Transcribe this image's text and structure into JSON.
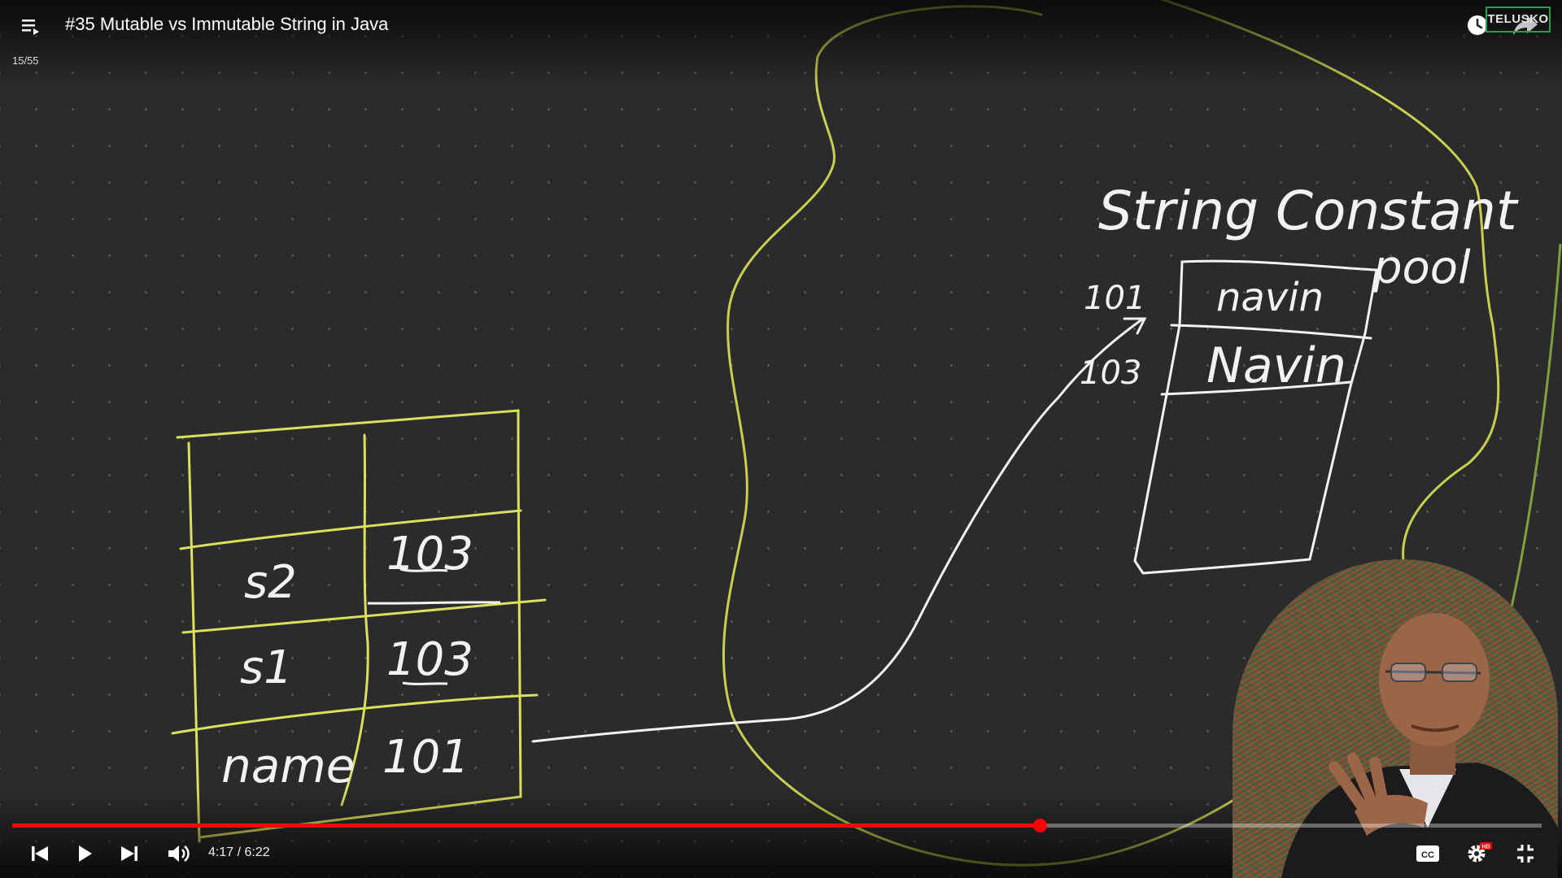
{
  "player": {
    "title": "#35 Mutable vs Immutable String in Java",
    "playlist_index": "15/55",
    "channel_watermark": "TELUSKO",
    "current_time": "4:17",
    "time_separator": " / ",
    "duration": "6:22",
    "progress": 0.672,
    "accent_color": "#ff0000",
    "icons": {
      "playlist": "playlist-icon",
      "watch_later": "clock-icon",
      "share": "share-icon",
      "previous": "skip-previous-icon",
      "play": "play-icon",
      "next": "skip-next-icon",
      "volume": "volume-icon",
      "captions": "cc-icon",
      "settings": "gear-icon",
      "settings_badge": "hd-badge",
      "exit_fullscreen": "exit-fullscreen-icon"
    },
    "settings_badge_text": "HD"
  },
  "whiteboard": {
    "stack_table": {
      "rows": [
        {
          "name": "s2",
          "address": "103"
        },
        {
          "name": "s1",
          "address": "103"
        },
        {
          "name": "name",
          "address": "101"
        }
      ]
    },
    "heap_label": "String Constant",
    "heap_label_line2": "pool",
    "pool": {
      "entries": [
        {
          "address": "101",
          "value": "navin"
        },
        {
          "address": "103",
          "value": "Navin"
        }
      ]
    },
    "colors": {
      "stack_outline": "#d9e05a",
      "heap_outline": "#c8cf4f",
      "ink": "#f2f2f2"
    }
  }
}
